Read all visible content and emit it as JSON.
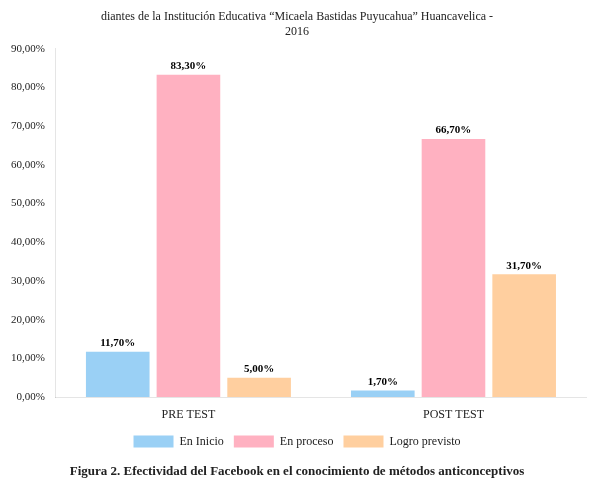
{
  "chart_data": {
    "type": "bar",
    "title": "diantes de la Institución Educativa “Micaela Bastidas Puyucahua” Huancavelica -\n2016",
    "annotations": [
      "Figura 2. Efectividad del Facebook en el conocimiento de métodos anticonceptivos"
    ],
    "categories": [
      "PRE TEST",
      "POST TEST"
    ],
    "series": [
      {
        "name": "En Inicio",
        "values": [
          11.7,
          1.7
        ],
        "value_labels": [
          "11,70%",
          "1,70%"
        ]
      },
      {
        "name": "En proceso",
        "values": [
          83.3,
          66.7
        ],
        "value_labels": [
          "83,30%",
          "66,70%"
        ]
      },
      {
        "name": "Logro previsto",
        "values": [
          5.0,
          31.7
        ],
        "value_labels": [
          "5,00%",
          "31,70%"
        ]
      }
    ],
    "ylim": [
      0,
      90
    ],
    "yticks": [
      {
        "value": 0,
        "label": "0,00%"
      },
      {
        "value": 10,
        "label": "10,00%"
      },
      {
        "value": 20,
        "label": "20,00%"
      },
      {
        "value": 30,
        "label": "30,00%"
      },
      {
        "value": 40,
        "label": "40,00%"
      },
      {
        "value": 50,
        "label": "50,00%"
      },
      {
        "value": 60,
        "label": "60,00%"
      },
      {
        "value": 70,
        "label": "70,00%"
      },
      {
        "value": 80,
        "label": "80,00%"
      },
      {
        "value": 90,
        "label": "90,00%"
      }
    ],
    "grid": false,
    "legend": "bottom",
    "data_labels": true
  }
}
